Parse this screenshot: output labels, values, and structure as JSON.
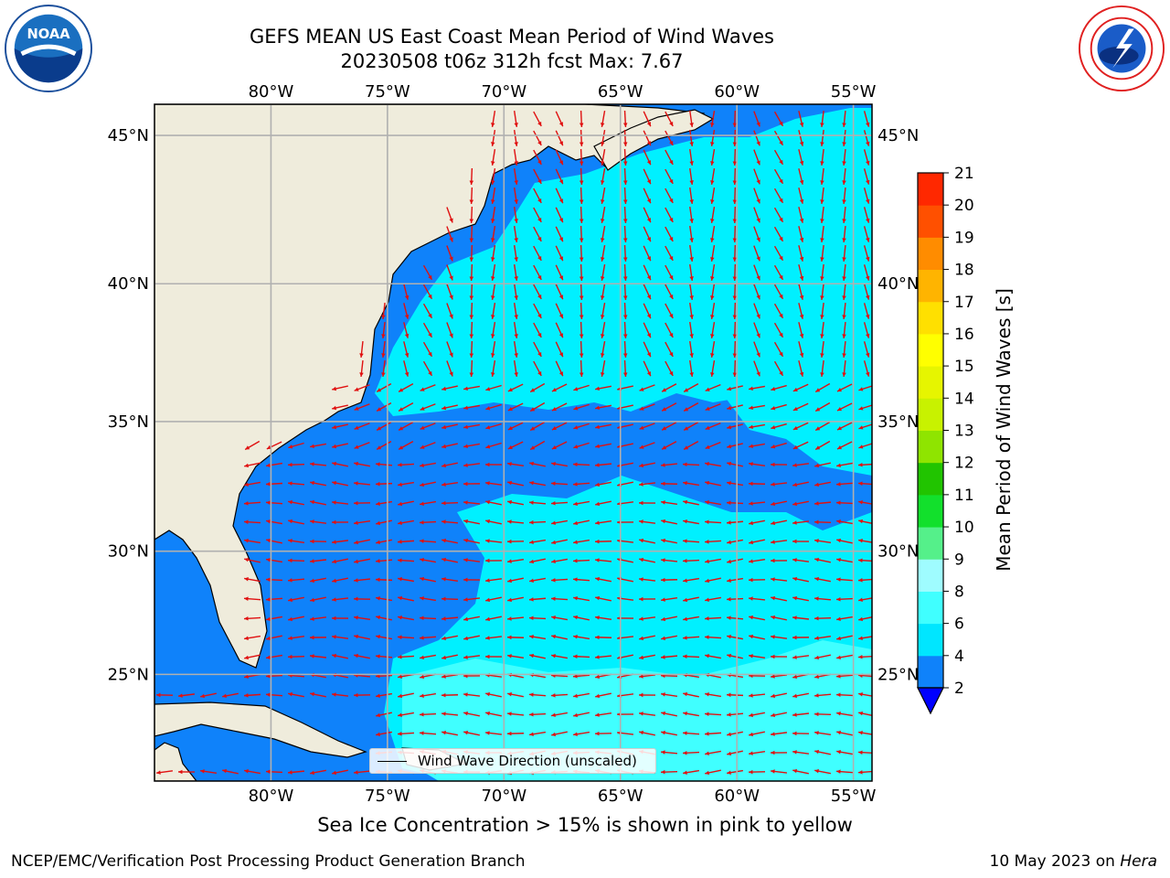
{
  "title": {
    "line1": "GEFS MEAN US East Coast Mean Period of Wind Waves",
    "line2": "20230508 t06z 312h fcst   Max: 7.67"
  },
  "axes": {
    "lon_labels": [
      "80°W",
      "75°W",
      "70°W",
      "65°W",
      "60°W",
      "55°W"
    ],
    "lon_values": [
      -80,
      -75,
      -70,
      -65,
      -60,
      -55
    ],
    "lat_labels": [
      "45°N",
      "40°N",
      "35°N",
      "30°N",
      "25°N"
    ],
    "lat_values": [
      45,
      40,
      35,
      30,
      25
    ],
    "lon_range": [
      -85,
      -54.2
    ],
    "lat_range": [
      20.5,
      46.0
    ]
  },
  "colorbar": {
    "label": "Mean Period of Wind Waves [s]",
    "ticks": [
      "2",
      "4",
      "6",
      "8",
      "9",
      "10",
      "11",
      "12",
      "13",
      "14",
      "15",
      "16",
      "17",
      "18",
      "19",
      "20",
      "21"
    ],
    "colors": [
      "#0f82fa",
      "#00e6ff",
      "#40ffff",
      "#9ffcff",
      "#55f08a",
      "#12e02c",
      "#21c400",
      "#8fe400",
      "#c8f200",
      "#e6f500",
      "#ffff00",
      "#ffe000",
      "#ffb400",
      "#ff8c00",
      "#ff5000",
      "#ff2800"
    ],
    "under_color": "#0000ff"
  },
  "legend": {
    "label": "Wind Wave Direction (unscaled)"
  },
  "subtitle": "Sea Ice Concentration > 15% is shown in pink to yellow",
  "footer": {
    "left": "NCEP/EMC/Verification Post Processing Product Generation Branch",
    "date": "10 May 2023 on ",
    "host": "Hera"
  },
  "colors": {
    "land": "#efecdc",
    "arrow": "#e01010",
    "grid": "#b0b0b0",
    "low": "#0f82fa",
    "mid": "#00f0ff"
  }
}
